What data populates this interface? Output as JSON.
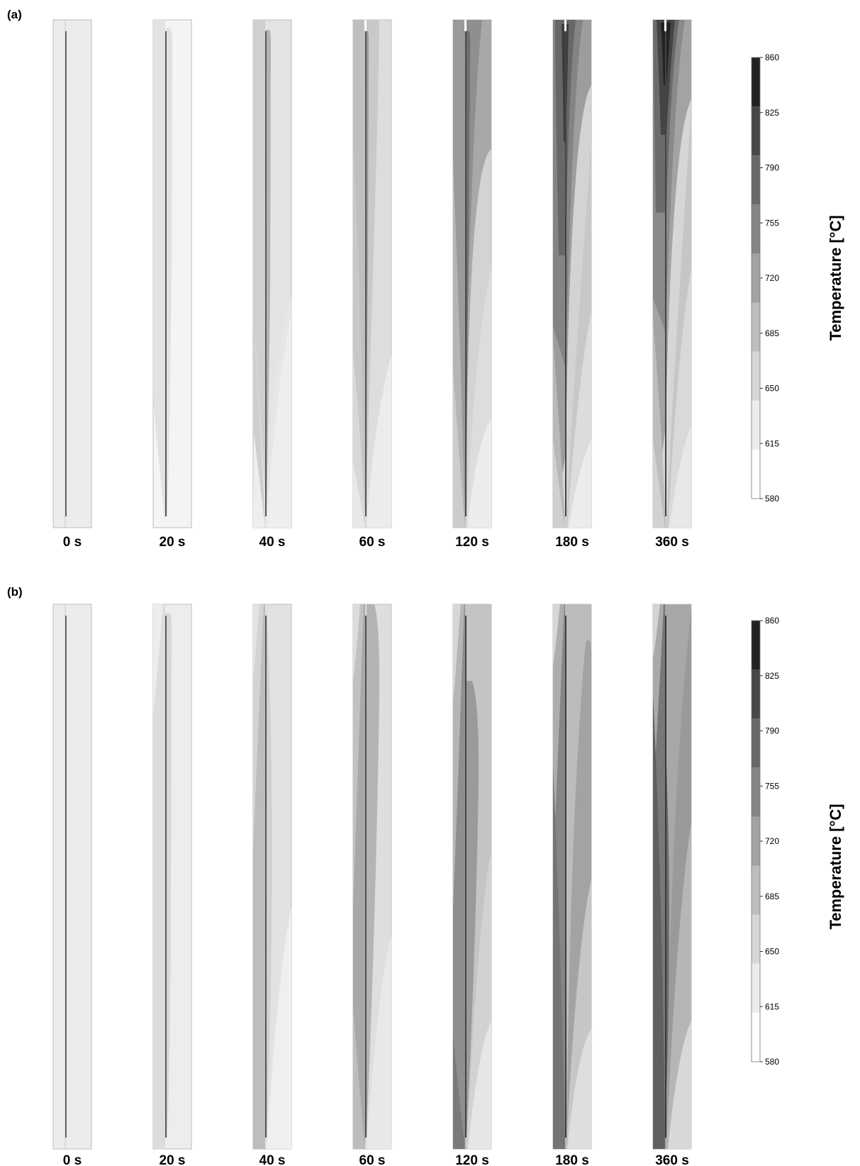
{
  "panels": [
    {
      "label": "(a)",
      "times": [
        "0 s",
        "20 s",
        "40 s",
        "60 s",
        "120 s",
        "180 s",
        "360 s"
      ],
      "colorbar": {
        "title": "Temperature [°C]",
        "ticks": [
          "860",
          "825",
          "790",
          "755",
          "720",
          "685",
          "650",
          "615",
          "580"
        ]
      }
    },
    {
      "label": "(b)",
      "times": [
        "0 s",
        "20 s",
        "40 s",
        "60 s",
        "120 s",
        "180 s",
        "360 s"
      ],
      "colorbar": {
        "title": "Temperature [°C]",
        "ticks": [
          "860",
          "825",
          "790",
          "755",
          "720",
          "685",
          "650",
          "615",
          "580"
        ]
      }
    }
  ],
  "colors": {
    "bands": [
      "#ffffff",
      "#ececec",
      "#d6d6d6",
      "#bdbdbd",
      "#a2a2a2",
      "#858585",
      "#686868",
      "#474747",
      "#222222"
    ]
  }
}
